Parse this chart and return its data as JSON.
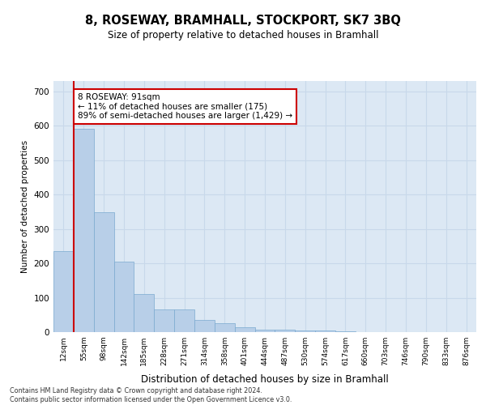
{
  "title": "8, ROSEWAY, BRAMHALL, STOCKPORT, SK7 3BQ",
  "subtitle": "Size of property relative to detached houses in Bramhall",
  "xlabel": "Distribution of detached houses by size in Bramhall",
  "ylabel": "Number of detached properties",
  "bar_labels": [
    "12sqm",
    "55sqm",
    "98sqm",
    "142sqm",
    "185sqm",
    "228sqm",
    "271sqm",
    "314sqm",
    "358sqm",
    "401sqm",
    "444sqm",
    "487sqm",
    "530sqm",
    "574sqm",
    "617sqm",
    "660sqm",
    "703sqm",
    "746sqm",
    "790sqm",
    "833sqm",
    "876sqm"
  ],
  "bar_values": [
    235,
    590,
    348,
    205,
    110,
    65,
    65,
    35,
    27,
    15,
    8,
    8,
    5,
    5,
    2,
    1,
    0,
    0,
    0,
    0,
    0
  ],
  "bar_color": "#b8cfe8",
  "bar_edge_color": "#7aaad0",
  "highlight_color": "#cc0000",
  "annotation_text": "8 ROSEWAY: 91sqm\n← 11% of detached houses are smaller (175)\n89% of semi-detached houses are larger (1,429) →",
  "annotation_box_color": "#ffffff",
  "annotation_box_edge": "#cc0000",
  "grid_color": "#c8d8ea",
  "bg_color": "#dce8f4",
  "ylim": [
    0,
    730
  ],
  "yticks": [
    0,
    100,
    200,
    300,
    400,
    500,
    600,
    700
  ],
  "footer_line1": "Contains HM Land Registry data © Crown copyright and database right 2024.",
  "footer_line2": "Contains public sector information licensed under the Open Government Licence v3.0."
}
